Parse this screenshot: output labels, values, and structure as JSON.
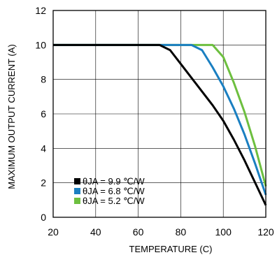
{
  "chart_data": {
    "type": "line",
    "xlabel": "TEMPERATURE (C)",
    "ylabel": "MAXIMUM OUTPUT CURRENT (A)",
    "xlim": [
      20,
      120
    ],
    "ylim": [
      0,
      12
    ],
    "xticks": [
      20,
      40,
      60,
      80,
      100,
      120
    ],
    "yticks": [
      0,
      2,
      4,
      6,
      8,
      10,
      12
    ],
    "grid": true,
    "legend_position": "bottom-left",
    "series": [
      {
        "name": "θJA = 9.9 ℃/W",
        "color": "#000000",
        "x": [
          20,
          70,
          75,
          80,
          85,
          90,
          95,
          100,
          105,
          110,
          115,
          120
        ],
        "y": [
          10,
          10,
          9.7,
          8.9,
          8.1,
          7.3,
          6.5,
          5.6,
          4.5,
          3.3,
          2.0,
          0.7
        ]
      },
      {
        "name": "θJA = 6.8 ℃/W",
        "color": "#1a7fc1",
        "x": [
          20,
          85,
          90,
          95,
          100,
          105,
          110,
          115,
          120
        ],
        "y": [
          10,
          10,
          9.7,
          8.7,
          7.6,
          6.3,
          4.8,
          3.1,
          1.3
        ]
      },
      {
        "name": "θJA = 5.2 ℃/W",
        "color": "#6dbf3f",
        "x": [
          20,
          95,
          100,
          105,
          110,
          115,
          120
        ],
        "y": [
          10,
          10,
          9.3,
          7.8,
          6.1,
          4.1,
          1.8
        ]
      }
    ]
  }
}
